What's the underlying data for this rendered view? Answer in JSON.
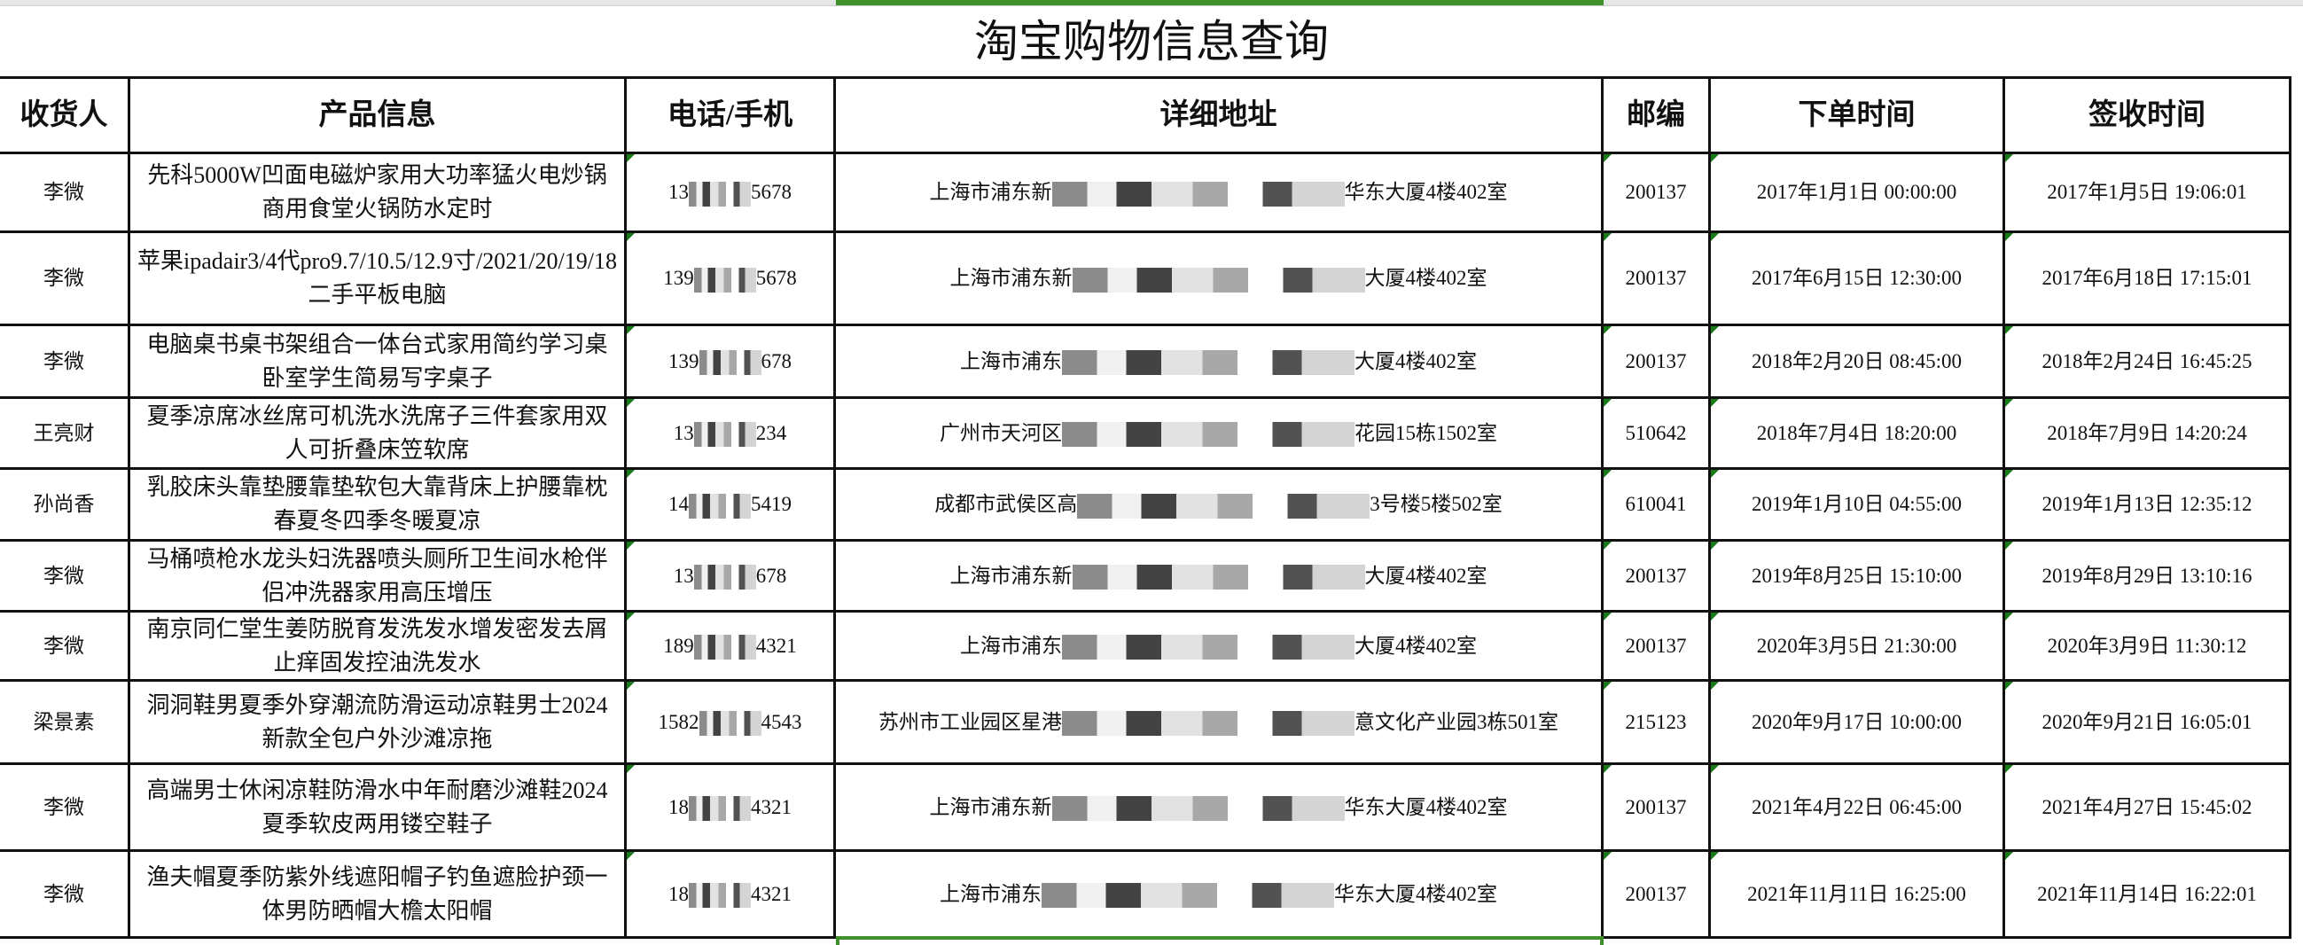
{
  "title": "淘宝购物信息查询",
  "headers": [
    "收货人",
    "产品信息",
    "电话/手机",
    "详细地址",
    "邮编",
    "下单时间",
    "签收时间"
  ],
  "accent_color": "#3f8f2a",
  "rows": [
    {
      "name": "李微",
      "product": "先科5000W凹面电磁炉家用大功率猛火电炒锅商用食堂火锅防水定时",
      "phone_prefix": "13",
      "phone_suffix": "5678",
      "addr_prefix": "上海市浦东新",
      "addr_suffix": "华东大厦4楼402室",
      "zip": "200137",
      "order_time": "2017年1月1日 00:00:00",
      "sign_time": "2017年1月5日 19:06:01"
    },
    {
      "name": "李微",
      "product": "苹果ipadair3/4代pro9.7/10.5/12.9寸/2021/20/19/18二手平板电脑",
      "phone_prefix": "139",
      "phone_suffix": "5678",
      "addr_prefix": "上海市浦东新",
      "addr_suffix": "大厦4楼402室",
      "zip": "200137",
      "order_time": "2017年6月15日 12:30:00",
      "sign_time": "2017年6月18日 17:15:01"
    },
    {
      "name": "李微",
      "product": "电脑桌书桌书架组合一体台式家用简约学习桌卧室学生简易写字桌子",
      "phone_prefix": "139",
      "phone_suffix": "678",
      "addr_prefix": "上海市浦东",
      "addr_suffix": "大厦4楼402室",
      "zip": "200137",
      "order_time": "2018年2月20日 08:45:00",
      "sign_time": "2018年2月24日 16:45:25"
    },
    {
      "name": "王亮财",
      "product": "夏季凉席冰丝席可机洗水洗席子三件套家用双人可折叠床笠软席",
      "phone_prefix": "13",
      "phone_suffix": "234",
      "addr_prefix": "广州市天河区",
      "addr_suffix": "花园15栋1502室",
      "zip": "510642",
      "order_time": "2018年7月4日 18:20:00",
      "sign_time": "2018年7月9日 14:20:24"
    },
    {
      "name": "孙尚香",
      "product": "乳胶床头靠垫腰靠垫软包大靠背床上护腰靠枕春夏冬四季冬暖夏凉",
      "phone_prefix": "14",
      "phone_suffix": "5419",
      "addr_prefix": "成都市武侯区高",
      "addr_suffix": "3号楼5楼502室",
      "zip": "610041",
      "order_time": "2019年1月10日 04:55:00",
      "sign_time": "2019年1月13日 12:35:12"
    },
    {
      "name": "李微",
      "product": "马桶喷枪水龙头妇洗器喷头厕所卫生间水枪伴侣冲洗器家用高压增压",
      "phone_prefix": "13",
      "phone_suffix": "678",
      "addr_prefix": "上海市浦东新",
      "addr_suffix": "大厦4楼402室",
      "zip": "200137",
      "order_time": "2019年8月25日 15:10:00",
      "sign_time": "2019年8月29日 13:10:16"
    },
    {
      "name": "李微",
      "product": "南京同仁堂生姜防脱育发洗发水增发密发去屑止痒固发控油洗发水",
      "phone_prefix": "189",
      "phone_suffix": "4321",
      "addr_prefix": "上海市浦东",
      "addr_suffix": "大厦4楼402室",
      "zip": "200137",
      "order_time": "2020年3月5日 21:30:00",
      "sign_time": "2020年3月9日 11:30:12"
    },
    {
      "name": "梁景素",
      "product": "洞洞鞋男夏季外穿潮流防滑运动凉鞋男士2024新款全包户外沙滩凉拖",
      "phone_prefix": "1582",
      "phone_suffix": "4543",
      "addr_prefix": "苏州市工业园区星港",
      "addr_suffix": "意文化产业园3栋501室",
      "zip": "215123",
      "order_time": "2020年9月17日 10:00:00",
      "sign_time": "2020年9月21日 16:05:01"
    },
    {
      "name": "李微",
      "product": "高端男士休闲凉鞋防滑水中年耐磨沙滩鞋2024夏季软皮两用镂空鞋子",
      "phone_prefix": "18",
      "phone_suffix": "4321",
      "addr_prefix": "上海市浦东新",
      "addr_suffix": "华东大厦4楼402室",
      "zip": "200137",
      "order_time": "2021年4月22日 06:45:00",
      "sign_time": "2021年4月27日 15:45:02"
    },
    {
      "name": "李微",
      "product": "渔夫帽夏季防紫外线遮阳帽子钓鱼遮脸护颈一体男防晒帽大檐太阳帽",
      "phone_prefix": "18",
      "phone_suffix": "4321",
      "addr_prefix": "上海市浦东",
      "addr_suffix": "华东大厦4楼402室",
      "zip": "200137",
      "order_time": "2021年11月11日 16:25:00",
      "sign_time": "2021年11月14日 16:22:01"
    }
  ]
}
